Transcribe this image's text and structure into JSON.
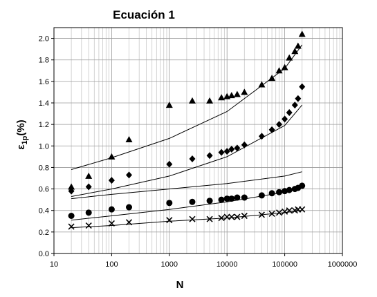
{
  "chart_data": {
    "type": "scatter",
    "title": "Ecuación 1",
    "xlabel": "N",
    "ylabel": "ε1p(%)",
    "ylabel_main": "ε",
    "ylabel_sub": "1p",
    "ylabel_tail": "(%)",
    "xscale": "log",
    "xlim": [
      10,
      1000000
    ],
    "ylim": [
      0.0,
      2.1
    ],
    "x_ticks": [
      "10",
      "100",
      "1000",
      "10000",
      "100000",
      "1000000"
    ],
    "y_ticks": [
      "0.0",
      "0.2",
      "0.4",
      "0.6",
      "0.8",
      "1.0",
      "1.2",
      "1.4",
      "1.6",
      "1.8",
      "2.0"
    ],
    "grid": "both",
    "legend": "none",
    "series": [
      {
        "marker": "triangle",
        "points": [
          [
            20,
            0.62
          ],
          [
            40,
            0.72
          ],
          [
            100,
            0.9
          ],
          [
            200,
            1.06
          ],
          [
            1000,
            1.38
          ],
          [
            2500,
            1.42
          ],
          [
            5000,
            1.42
          ],
          [
            8000,
            1.45
          ],
          [
            10000,
            1.46
          ],
          [
            12000,
            1.47
          ],
          [
            15000,
            1.48
          ],
          [
            20000,
            1.5
          ],
          [
            40000,
            1.57
          ],
          [
            60000,
            1.63
          ],
          [
            80000,
            1.7
          ],
          [
            100000,
            1.73
          ],
          [
            120000,
            1.82
          ],
          [
            150000,
            1.88
          ],
          [
            170000,
            1.93
          ],
          [
            200000,
            2.04
          ]
        ],
        "fit": [
          [
            20,
            0.78
          ],
          [
            100,
            0.89
          ],
          [
            1000,
            1.07
          ],
          [
            10000,
            1.32
          ],
          [
            100000,
            1.72
          ],
          [
            200000,
            1.94
          ]
        ]
      },
      {
        "marker": "diamond",
        "points": [
          [
            20,
            0.58
          ],
          [
            40,
            0.62
          ],
          [
            100,
            0.68
          ],
          [
            200,
            0.73
          ],
          [
            1000,
            0.83
          ],
          [
            2500,
            0.88
          ],
          [
            5000,
            0.91
          ],
          [
            8000,
            0.94
          ],
          [
            10000,
            0.95
          ],
          [
            12000,
            0.97
          ],
          [
            15000,
            0.98
          ],
          [
            20000,
            1.01
          ],
          [
            40000,
            1.09
          ],
          [
            60000,
            1.15
          ],
          [
            80000,
            1.2
          ],
          [
            100000,
            1.25
          ],
          [
            120000,
            1.31
          ],
          [
            150000,
            1.38
          ],
          [
            170000,
            1.44
          ],
          [
            200000,
            1.55
          ]
        ],
        "fit": [
          [
            20,
            0.53
          ],
          [
            100,
            0.6
          ],
          [
            1000,
            0.72
          ],
          [
            10000,
            0.9
          ],
          [
            100000,
            1.19
          ],
          [
            200000,
            1.38
          ]
        ]
      },
      {
        "marker": "none",
        "fit": [
          [
            20,
            0.51
          ],
          [
            100,
            0.55
          ],
          [
            1000,
            0.6
          ],
          [
            10000,
            0.65
          ],
          [
            100000,
            0.72
          ],
          [
            200000,
            0.76
          ]
        ]
      },
      {
        "marker": "circle",
        "points": [
          [
            20,
            0.35
          ],
          [
            40,
            0.38
          ],
          [
            100,
            0.41
          ],
          [
            200,
            0.43
          ],
          [
            1000,
            0.47
          ],
          [
            2500,
            0.48
          ],
          [
            5000,
            0.49
          ],
          [
            8000,
            0.5
          ],
          [
            10000,
            0.51
          ],
          [
            12000,
            0.51
          ],
          [
            15000,
            0.52
          ],
          [
            20000,
            0.52
          ],
          [
            40000,
            0.54
          ],
          [
            60000,
            0.56
          ],
          [
            80000,
            0.57
          ],
          [
            100000,
            0.58
          ],
          [
            120000,
            0.59
          ],
          [
            150000,
            0.6
          ],
          [
            170000,
            0.61
          ],
          [
            200000,
            0.63
          ]
        ],
        "fit": [
          [
            20,
            0.31
          ],
          [
            100,
            0.35
          ],
          [
            1000,
            0.41
          ],
          [
            10000,
            0.48
          ],
          [
            100000,
            0.57
          ],
          [
            200000,
            0.61
          ]
        ]
      },
      {
        "marker": "cross",
        "points": [
          [
            20,
            0.25
          ],
          [
            40,
            0.26
          ],
          [
            100,
            0.28
          ],
          [
            200,
            0.29
          ],
          [
            1000,
            0.31
          ],
          [
            2500,
            0.32
          ],
          [
            5000,
            0.32
          ],
          [
            8000,
            0.33
          ],
          [
            10000,
            0.34
          ],
          [
            12000,
            0.34
          ],
          [
            15000,
            0.34
          ],
          [
            20000,
            0.35
          ],
          [
            40000,
            0.36
          ],
          [
            60000,
            0.37
          ],
          [
            80000,
            0.38
          ],
          [
            100000,
            0.39
          ],
          [
            120000,
            0.4
          ],
          [
            150000,
            0.4
          ],
          [
            170000,
            0.41
          ],
          [
            200000,
            0.41
          ]
        ],
        "fit": [
          [
            20,
            0.24
          ],
          [
            100,
            0.26
          ],
          [
            1000,
            0.3
          ],
          [
            10000,
            0.33
          ],
          [
            100000,
            0.38
          ],
          [
            200000,
            0.4
          ]
        ]
      }
    ]
  }
}
